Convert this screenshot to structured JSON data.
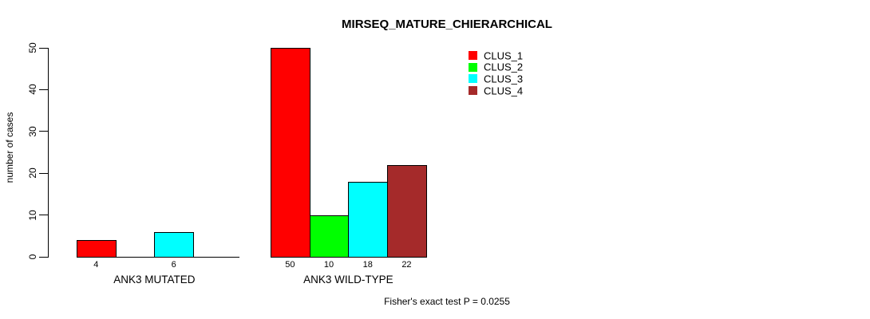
{
  "chart_data": {
    "type": "bar",
    "title": "MIRSEQ_MATURE_CHIERARCHICAL",
    "ylabel": "number of cases",
    "ylim": [
      0,
      50
    ],
    "yticks": [
      0,
      10,
      20,
      30,
      40,
      50
    ],
    "grid": false,
    "legend_position": "top-right",
    "series": [
      {
        "name": "CLUS_1",
        "color": "#ff0000"
      },
      {
        "name": "CLUS_2",
        "color": "#00ff00"
      },
      {
        "name": "CLUS_3",
        "color": "#00ffff"
      },
      {
        "name": "CLUS_4",
        "color": "#a52a2a"
      }
    ],
    "categories": [
      "ANK3 MUTATED",
      "ANK3 WILD-TYPE"
    ],
    "groups": [
      {
        "label": "ANK3 MUTATED",
        "values": [
          4,
          0,
          6,
          0
        ],
        "bar_labels": [
          "4",
          "",
          "6",
          ""
        ]
      },
      {
        "label": "ANK3 WILD-TYPE",
        "values": [
          50,
          10,
          18,
          22
        ],
        "bar_labels": [
          "50",
          "10",
          "18",
          "22"
        ]
      }
    ],
    "annotation": "Fisher's exact test P = 0.0255",
    "bar_border_color": "#000000",
    "axis_color": "#000000",
    "background": "#ffffff"
  }
}
